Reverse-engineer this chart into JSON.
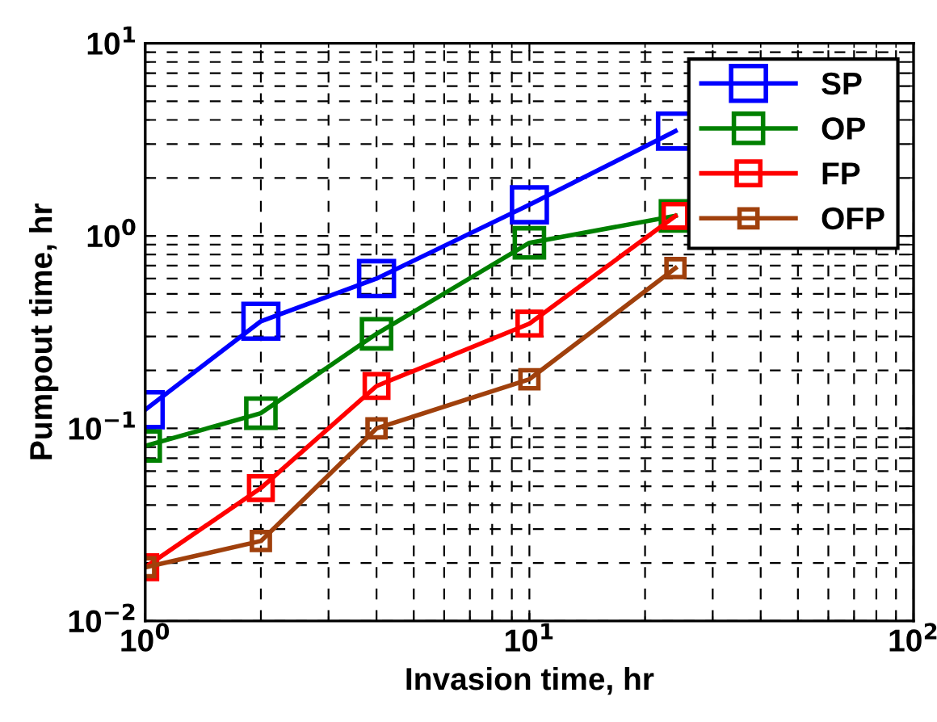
{
  "chart_data": {
    "type": "line",
    "xlabel": "Invasion time, hr",
    "ylabel": "Pumpout time, hr",
    "x": [
      1,
      2,
      4,
      10,
      24
    ],
    "series": [
      {
        "name": "SP",
        "color": "#0000ff",
        "values": [
          0.125,
          0.36,
          0.6,
          1.45,
          3.5
        ]
      },
      {
        "name": "OP",
        "color": "#008000",
        "values": [
          0.081,
          0.12,
          0.31,
          0.92,
          1.27
        ]
      },
      {
        "name": "FP",
        "color": "#ff0000",
        "values": [
          0.019,
          0.049,
          0.166,
          0.35,
          1.27
        ]
      },
      {
        "name": "OFP",
        "color": "#a0400c",
        "values": [
          0.019,
          0.026,
          0.1,
          0.18,
          0.68
        ]
      }
    ],
    "log": "xy",
    "xlim": [
      1,
      100
    ],
    "ylim": [
      0.01,
      10
    ],
    "xticks": [
      {
        "value": 1,
        "label": "10$^{0}$"
      },
      {
        "value": 10,
        "label": "10$^{1}$"
      },
      {
        "value": 100,
        "label": "10$^{2}$"
      }
    ],
    "yticks": [
      {
        "value": 0.01,
        "label": "10$^{−2}$"
      },
      {
        "value": 0.1,
        "label": "10$^{−1}$"
      },
      {
        "value": 1,
        "label": "10$^{0}$"
      },
      {
        "value": 10,
        "label": "10$^{1}$"
      }
    ],
    "grid": true,
    "legend": "top right",
    "marker": "square",
    "line_style": "solid"
  }
}
